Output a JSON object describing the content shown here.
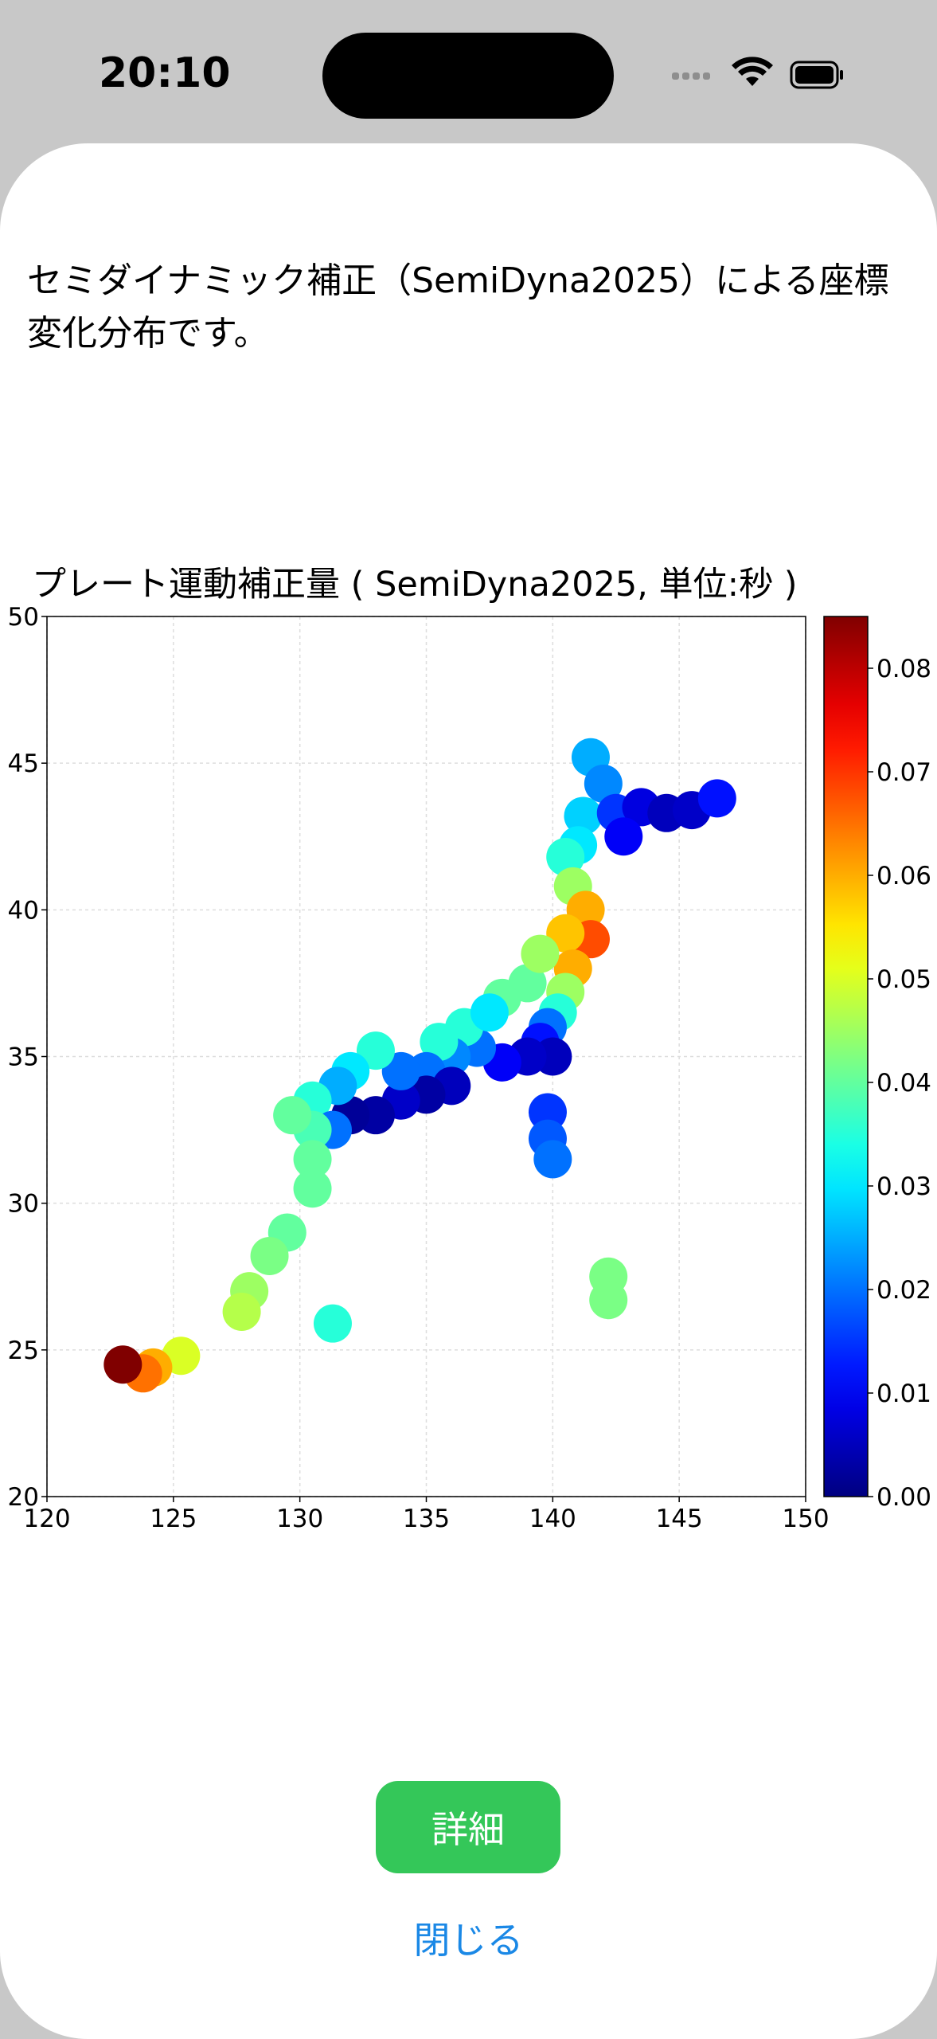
{
  "status_bar": {
    "time": "20:10"
  },
  "description": "セミダイナミック補正（SemiDyna2025）による座標変化分布です。",
  "chart_data": {
    "type": "scatter",
    "title": "プレート運動補正量 ( SemiDyna2025, 単位:秒 )",
    "x": [
      141.5,
      142,
      141.2,
      142.5,
      143.5,
      144.5,
      145.5,
      146.5,
      141,
      142.8,
      140.5,
      140.8,
      141.3,
      141.5,
      140.5,
      140.8,
      140.5,
      140.2,
      139.8,
      139,
      138,
      139.5,
      140,
      139,
      138,
      137,
      136.5,
      137.5,
      136,
      135.5,
      135,
      136,
      135,
      134,
      133,
      132,
      134,
      133,
      132,
      131.5,
      130.5,
      131.3,
      130.5,
      130.5,
      129.7,
      130.5,
      129.5,
      128.8,
      128,
      127.7,
      131.3,
      125.3,
      124.2,
      123.8,
      123,
      139.8,
      139.8,
      140,
      142.2,
      142.2,
      139.5
    ],
    "y": [
      45.2,
      44.3,
      43.2,
      43.3,
      43.5,
      43.3,
      43.4,
      43.8,
      42.2,
      42.5,
      41.8,
      40.8,
      40,
      39,
      39.2,
      38,
      37.2,
      36.5,
      36,
      37.5,
      37,
      35.5,
      35,
      35,
      34.8,
      35.3,
      36,
      36.5,
      35,
      35.5,
      34.5,
      34,
      33.7,
      33.5,
      33,
      33,
      34.5,
      35.2,
      34.5,
      34,
      33.5,
      32.5,
      32.5,
      31.5,
      33,
      30.5,
      29,
      28.2,
      27,
      26.3,
      25.9,
      24.8,
      24.4,
      24.2,
      24.5,
      33.1,
      32.2,
      31.5,
      27.5,
      26.7,
      38.5
    ],
    "values": [
      0.025,
      0.022,
      0.028,
      0.015,
      0.008,
      0.005,
      0.006,
      0.012,
      0.03,
      0.01,
      0.035,
      0.045,
      0.06,
      0.068,
      0.058,
      0.06,
      0.045,
      0.035,
      0.02,
      0.04,
      0.04,
      0.012,
      0.005,
      0.006,
      0.01,
      0.02,
      0.035,
      0.03,
      0.022,
      0.035,
      0.02,
      0.005,
      0.003,
      0.006,
      0.003,
      0.002,
      0.02,
      0.035,
      0.03,
      0.025,
      0.035,
      0.02,
      0.038,
      0.04,
      0.04,
      0.04,
      0.04,
      0.042,
      0.045,
      0.047,
      0.035,
      0.05,
      0.06,
      0.065,
      0.085,
      0.015,
      0.018,
      0.02,
      0.042,
      0.042,
      0.045
    ],
    "xlim": [
      120,
      150
    ],
    "ylim": [
      20,
      50
    ],
    "xticks": [
      120,
      125,
      130,
      135,
      140,
      145,
      150
    ],
    "yticks": [
      20,
      25,
      30,
      35,
      40,
      45,
      50
    ],
    "grid": true,
    "colormap": "jet",
    "colorbar": {
      "lim": [
        0,
        0.085
      ],
      "ticks": [
        {
          "value": 0,
          "label": "0.00"
        },
        0.01,
        0.02,
        0.03,
        0.04,
        0.05,
        0.06,
        0.07,
        0.08
      ]
    }
  },
  "buttons": {
    "details": "詳細",
    "close": "閉じる"
  }
}
